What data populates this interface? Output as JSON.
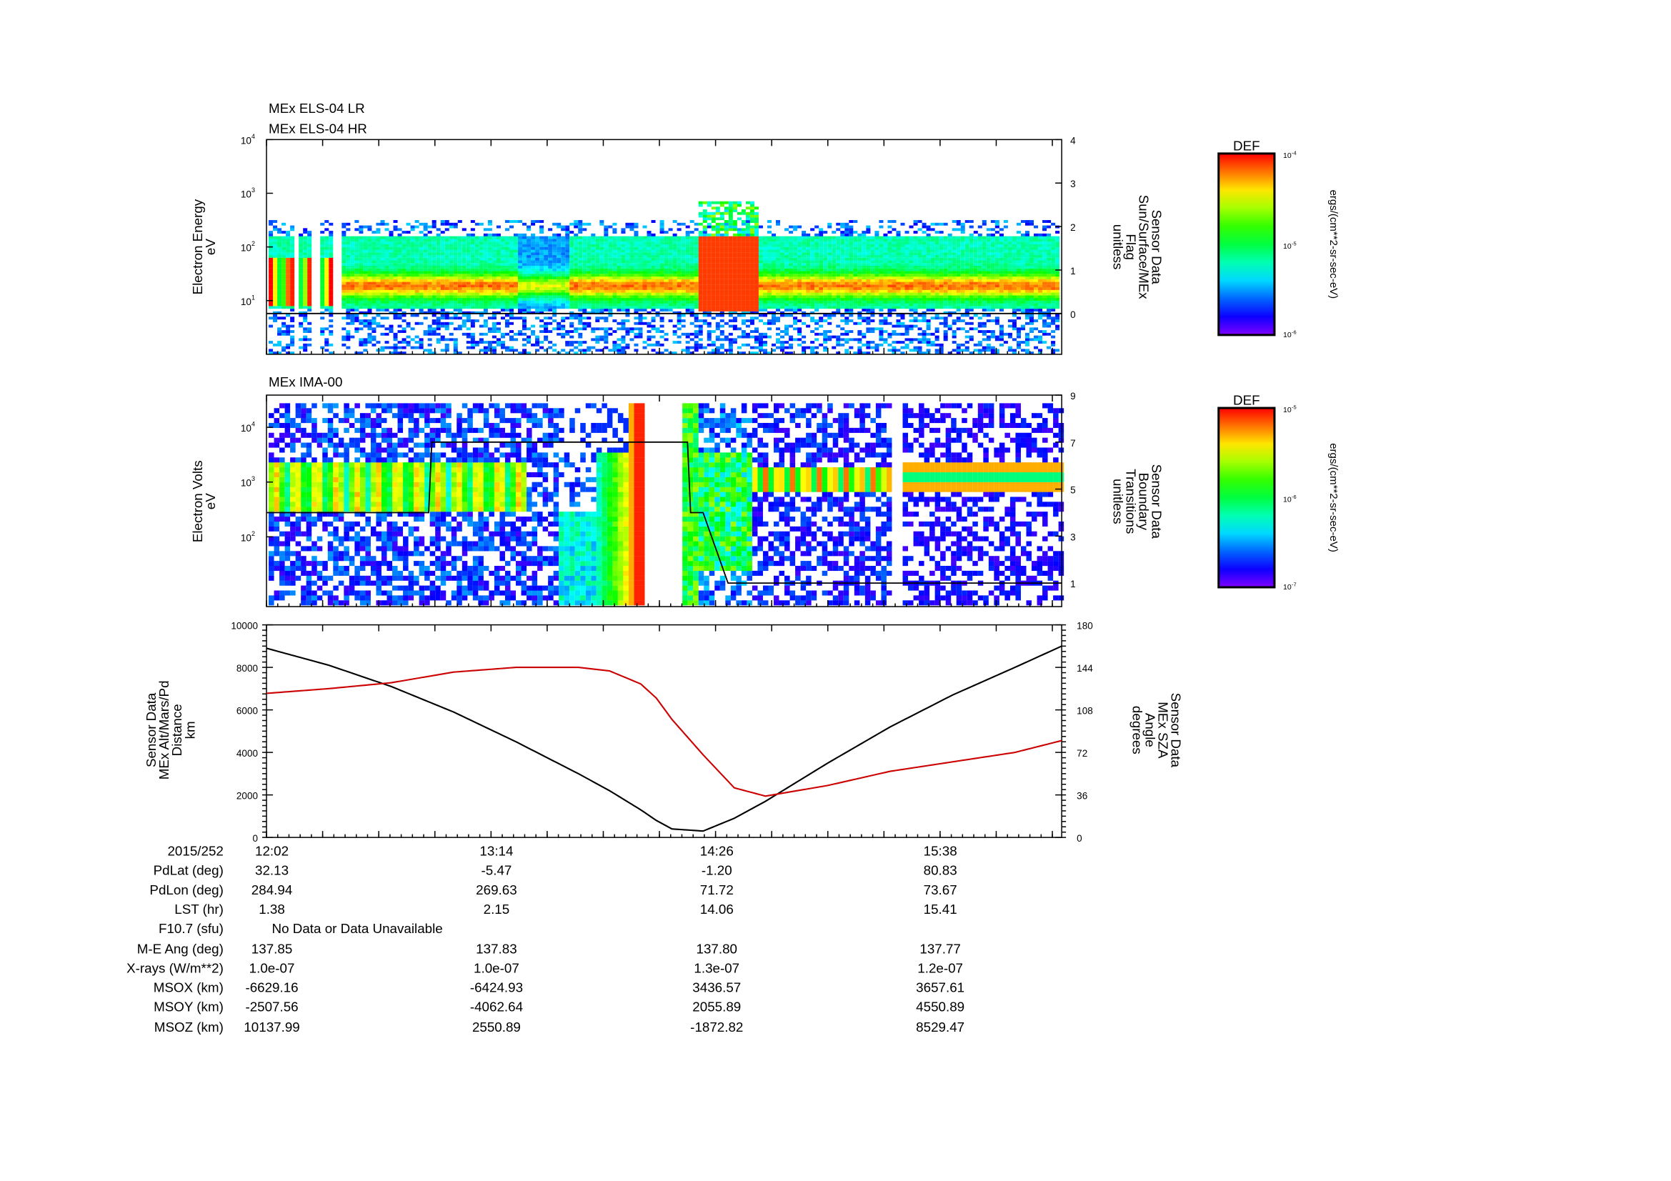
{
  "chart_data": [
    {
      "type": "heatmap",
      "title": [
        "MEx ELS-04 LR",
        "MEx ELS-04 HR"
      ],
      "ylabel": [
        "Electron Energy",
        "eV"
      ],
      "yscale": "log",
      "ylim": [
        1,
        10000
      ],
      "yticks": [
        "10",
        "10",
        "10",
        "10"
      ],
      "ytick_exp": [
        "4",
        "3",
        "2",
        "1"
      ],
      "y2label": [
        "Sensor Data",
        "Sun/Surface/MEx",
        "Flag",
        "unitless"
      ],
      "y2lim": [
        0,
        4
      ],
      "y2ticks": [
        "4",
        "3",
        "2",
        "1",
        "0"
      ],
      "flag_series": {
        "x_min": [
          0,
          255
        ],
        "y": [
          0,
          0
        ]
      },
      "colorbar": {
        "title": "DEF",
        "max_label": "10",
        "max_exp": "-4",
        "mid_label": "10",
        "mid_exp": "-5",
        "min_label": "10",
        "min_exp": "-6",
        "units": "ergs/(cm**2-sr-sec-eV)"
      }
    },
    {
      "type": "heatmap",
      "title": "MEx IMA-00",
      "ylabel": [
        "Electron Volts",
        "eV"
      ],
      "yscale": "log",
      "ylim": [
        5,
        40000
      ],
      "yticks": [
        "10",
        "10",
        "10"
      ],
      "ytick_exp": [
        "4",
        "3",
        "2"
      ],
      "y2label": [
        "Sensor Data",
        "Boundary",
        "Transitions",
        "unitless"
      ],
      "y2lim": [
        0,
        9
      ],
      "y2ticks": [
        "9",
        "7",
        "5",
        "3",
        "1"
      ],
      "boundary_series": {
        "x_min": [
          0,
          52,
          53,
          135,
          136,
          140,
          148,
          255
        ],
        "y": [
          4,
          4,
          7,
          7,
          4,
          4,
          1,
          1
        ]
      },
      "colorbar": {
        "title": "DEF",
        "max_label": "10",
        "max_exp": "-5",
        "mid_label": "10",
        "mid_exp": "-6",
        "min_label": "10",
        "min_exp": "-7",
        "units": "ergs/(cm**2-sr-sec-eV)"
      }
    },
    {
      "type": "line",
      "ylabel": [
        "Sensor Data",
        "MEx Alt/Mars/Pd",
        "Distance",
        "km"
      ],
      "ylim": [
        0,
        10000
      ],
      "yticks": [
        "10000",
        "8000",
        "6000",
        "4000",
        "2000",
        "0"
      ],
      "y2label": [
        "Sensor Data",
        "MEx SZA",
        "Angle",
        "degrees"
      ],
      "y2lim": [
        0,
        180
      ],
      "y2ticks": [
        "180",
        "144",
        "108",
        "72",
        "36",
        "0"
      ],
      "x_minutes_after_1202": [
        0,
        20,
        40,
        60,
        80,
        100,
        110,
        120,
        125,
        130,
        140,
        150,
        160,
        180,
        200,
        220,
        240,
        255
      ],
      "series": [
        {
          "name": "MEx Alt/Mars/Pd Distance (km)",
          "color": "#000000",
          "values": [
            8900,
            8100,
            7100,
            5900,
            4500,
            3000,
            2200,
            1300,
            800,
            400,
            300,
            900,
            1700,
            3500,
            5200,
            6700,
            8000,
            9000
          ]
        },
        {
          "name": "MEx SZA (degrees)",
          "color": "#cc0000",
          "values": [
            122,
            126,
            131,
            140,
            144,
            144,
            141,
            130,
            118,
            100,
            70,
            42,
            35,
            44,
            56,
            64,
            72,
            82
          ]
        }
      ]
    }
  ],
  "time_axis": {
    "date": "2015/252",
    "ticks": [
      "12:02",
      "13:14",
      "14:26",
      "15:38"
    ]
  },
  "ephemeris": [
    {
      "label": "PdLat (deg)",
      "values": [
        "32.13",
        "-5.47",
        "-1.20",
        "80.83"
      ]
    },
    {
      "label": "PdLon (deg)",
      "values": [
        "284.94",
        "269.63",
        "71.72",
        "73.67"
      ]
    },
    {
      "label": "LST (hr)",
      "values": [
        "1.38",
        "2.15",
        "14.06",
        "15.41"
      ]
    },
    {
      "label": "F10.7 (sfu)",
      "values": [
        "No Data or Data Unavailable"
      ]
    },
    {
      "label": "M-E Ang (deg)",
      "values": [
        "137.85",
        "137.83",
        "137.80",
        "137.77"
      ]
    },
    {
      "label": "X-rays (W/m**2)",
      "values": [
        "1.0e-07",
        "1.0e-07",
        "1.3e-07",
        "1.2e-07"
      ]
    },
    {
      "label": "MSOX (km)",
      "values": [
        "-6629.16",
        "-6424.93",
        "3436.57",
        "3657.61"
      ]
    },
    {
      "label": "MSOY (km)",
      "values": [
        "-2507.56",
        "-4062.64",
        "2055.89",
        "4550.89"
      ]
    },
    {
      "label": "MSOZ (km)",
      "values": [
        "10137.99",
        "2550.89",
        "-1872.82",
        "8529.47"
      ]
    }
  ]
}
